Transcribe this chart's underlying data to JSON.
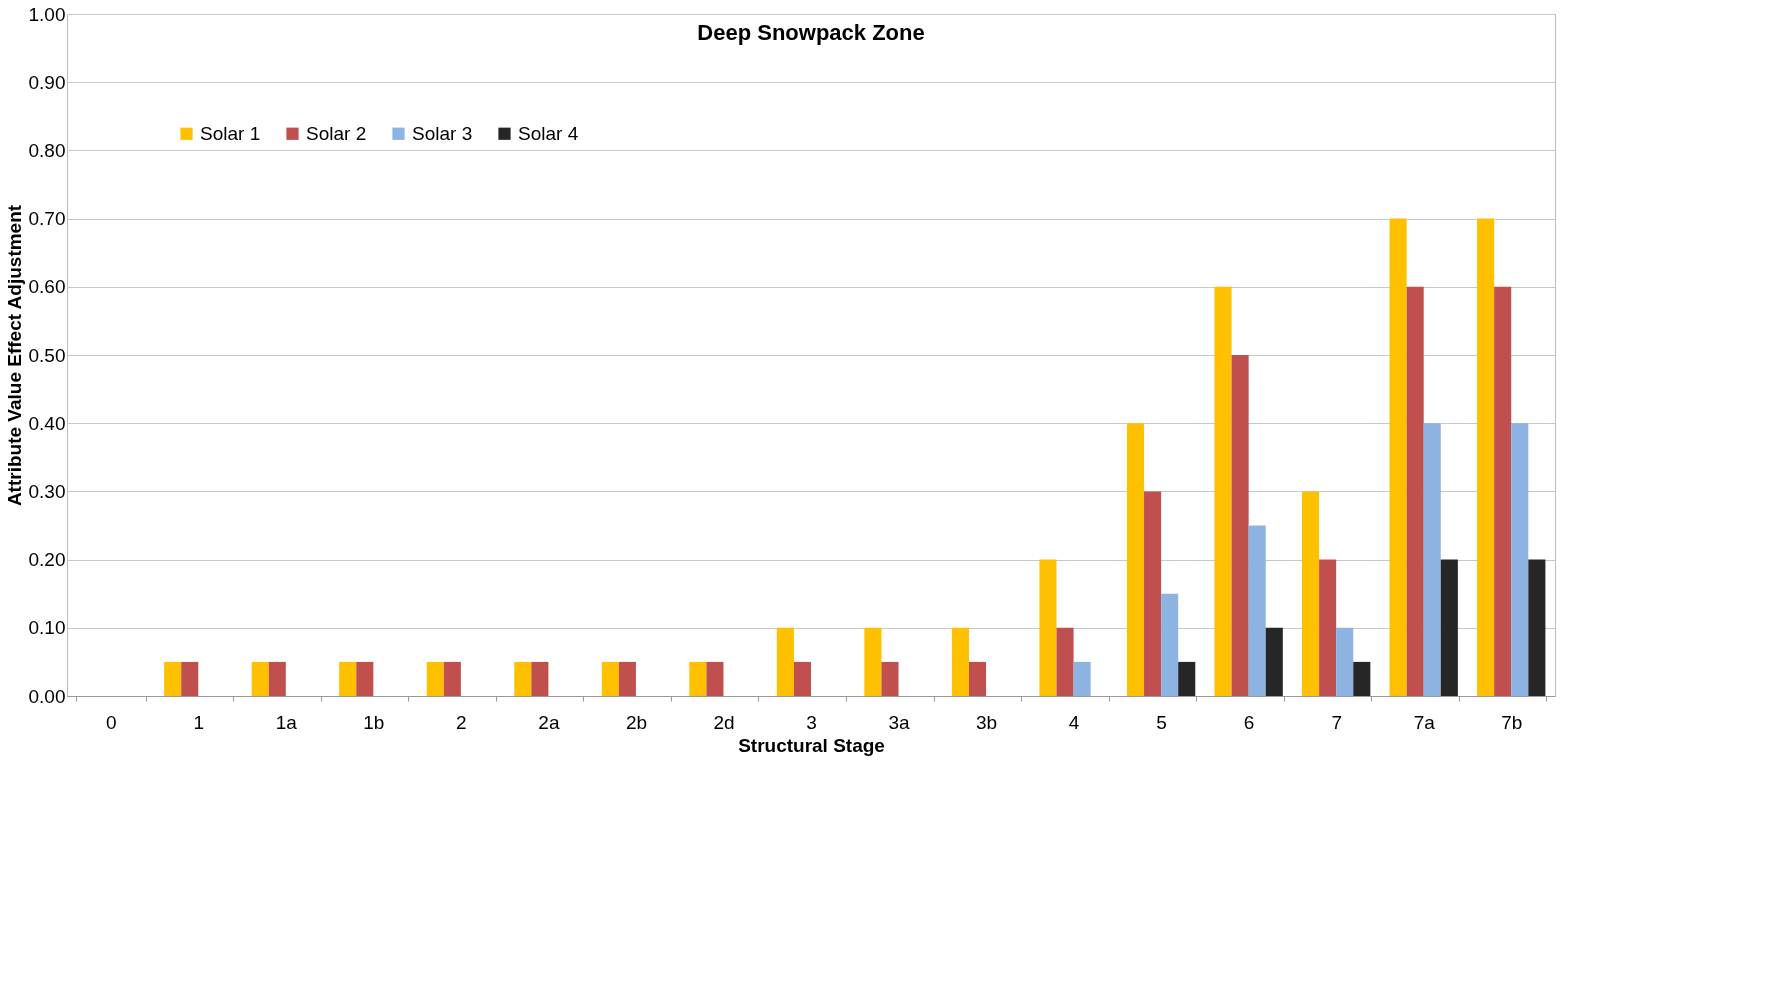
{
  "chart_data": {
    "type": "bar",
    "title": "Deep Snowpack Zone",
    "xlabel": "Structural Stage",
    "ylabel": "Attribute Value Effect Adjustment",
    "categories": [
      "0",
      "1",
      "1a",
      "1b",
      "2",
      "2a",
      "2b",
      "2d",
      "3",
      "3a",
      "3b",
      "4",
      "5",
      "6",
      "7",
      "7a",
      "7b"
    ],
    "series": [
      {
        "name": "Solar 1",
        "color": "#ffc000",
        "values": [
          0,
          0.05,
          0.05,
          0.05,
          0.05,
          0.05,
          0.05,
          0.05,
          0.1,
          0.1,
          0.1,
          0.2,
          0.4,
          0.6,
          0.3,
          0.7,
          0.7
        ]
      },
      {
        "name": "Solar 2",
        "color": "#c0504d",
        "values": [
          0,
          0.05,
          0.05,
          0.05,
          0.05,
          0.05,
          0.05,
          0.05,
          0.05,
          0.05,
          0.05,
          0.1,
          0.3,
          0.5,
          0.2,
          0.6,
          0.6
        ]
      },
      {
        "name": "Solar 3",
        "color": "#8db3e2",
        "values": [
          0,
          0,
          0,
          0,
          0,
          0,
          0,
          0,
          0,
          0,
          0,
          0.05,
          0.15,
          0.25,
          0.1,
          0.4,
          0.4
        ]
      },
      {
        "name": "Solar 4",
        "color": "#262626",
        "values": [
          0,
          0,
          0,
          0,
          0,
          0,
          0,
          0,
          0,
          0,
          0,
          0,
          0.05,
          0.1,
          0.05,
          0.2,
          0.2
        ]
      }
    ],
    "ylim": [
      0,
      1
    ],
    "yticks": [
      {
        "value": 0,
        "label": "0.00"
      },
      {
        "value": 0.1,
        "label": "0.10"
      },
      {
        "value": 0.2,
        "label": "0.20"
      },
      {
        "value": 0.3,
        "label": "0.30"
      },
      {
        "value": 0.4,
        "label": "0.40"
      },
      {
        "value": 0.5,
        "label": "0.50"
      },
      {
        "value": 0.6,
        "label": "0.60"
      },
      {
        "value": 0.7,
        "label": "0.70"
      },
      {
        "value": 0.8,
        "label": "0.80"
      },
      {
        "value": 0.9,
        "label": "0.90"
      },
      {
        "value": 1,
        "label": "1.00"
      }
    ],
    "grid": "y",
    "legend": "top left"
  }
}
